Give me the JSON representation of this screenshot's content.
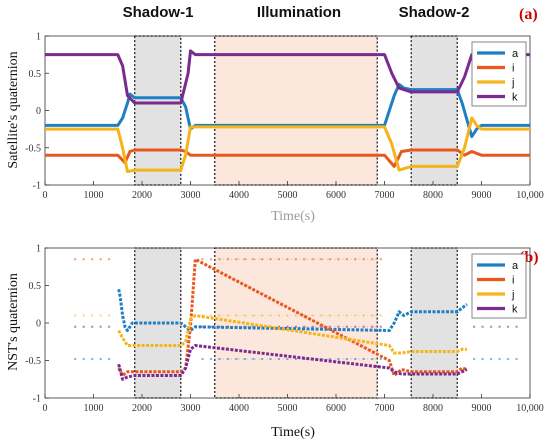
{
  "phases": {
    "shadow1": "Shadow-1",
    "illumination": "Illumination",
    "shadow2": "Shadow-2"
  },
  "colors": {
    "a": "#1f7fc4",
    "i": "#e8581c",
    "j": "#f4b41a",
    "k": "#7b2a8e",
    "shadow_fill": "#e2e2e2",
    "illum_fill": "#fbe7dc",
    "panel_tag": "#d40000"
  },
  "chart_data": [
    {
      "type": "line",
      "panel_label": "(a)",
      "xlabel": "Time(s)",
      "ylabel": "Satellite's quaternion",
      "xlim": [
        0,
        10000
      ],
      "ylim": [
        -1,
        1
      ],
      "xticks": [
        "0",
        "1000",
        "2000",
        "3000",
        "4000",
        "5000",
        "6000",
        "7000",
        "8000",
        "9000",
        "10,000"
      ],
      "yticks": [
        "-1",
        "-0.5",
        "0",
        "0.5",
        "1"
      ],
      "regions": [
        {
          "name": "Shadow-1",
          "x0": 1850,
          "x1": 2800
        },
        {
          "name": "Illumination",
          "x0": 3500,
          "x1": 6850
        },
        {
          "name": "Shadow-2",
          "x0": 7550,
          "x1": 8500
        }
      ],
      "legend": "top-right",
      "series": [
        {
          "name": "a",
          "points": [
            [
              0,
              -0.2
            ],
            [
              1500,
              -0.2
            ],
            [
              1600,
              -0.1
            ],
            [
              1700,
              0.1
            ],
            [
              1750,
              0.22
            ],
            [
              1850,
              0.17
            ],
            [
              2800,
              0.17
            ],
            [
              2900,
              0.05
            ],
            [
              3000,
              -0.25
            ],
            [
              3100,
              -0.2
            ],
            [
              7000,
              -0.2
            ],
            [
              7200,
              0.2
            ],
            [
              7300,
              0.35
            ],
            [
              7400,
              0.3
            ],
            [
              7550,
              0.28
            ],
            [
              8500,
              0.28
            ],
            [
              8600,
              0.1
            ],
            [
              8800,
              -0.35
            ],
            [
              8900,
              -0.25
            ],
            [
              9000,
              -0.2
            ],
            [
              10000,
              -0.2
            ]
          ]
        },
        {
          "name": "i",
          "points": [
            [
              0,
              -0.6
            ],
            [
              1500,
              -0.6
            ],
            [
              1650,
              -0.7
            ],
            [
              1750,
              -0.55
            ],
            [
              1850,
              -0.53
            ],
            [
              2800,
              -0.53
            ],
            [
              2900,
              -0.55
            ],
            [
              3000,
              -0.6
            ],
            [
              7000,
              -0.6
            ],
            [
              7200,
              -0.75
            ],
            [
              7350,
              -0.55
            ],
            [
              7550,
              -0.53
            ],
            [
              8500,
              -0.53
            ],
            [
              8650,
              -0.6
            ],
            [
              8800,
              -0.55
            ],
            [
              9000,
              -0.6
            ],
            [
              10000,
              -0.6
            ]
          ]
        },
        {
          "name": "j",
          "points": [
            [
              0,
              -0.25
            ],
            [
              1500,
              -0.25
            ],
            [
              1600,
              -0.5
            ],
            [
              1700,
              -0.82
            ],
            [
              1850,
              -0.8
            ],
            [
              2800,
              -0.8
            ],
            [
              2900,
              -0.6
            ],
            [
              3000,
              -0.22
            ],
            [
              7000,
              -0.22
            ],
            [
              7150,
              -0.45
            ],
            [
              7300,
              -0.8
            ],
            [
              7550,
              -0.75
            ],
            [
              8500,
              -0.75
            ],
            [
              8650,
              -0.5
            ],
            [
              8800,
              -0.1
            ],
            [
              8900,
              -0.2
            ],
            [
              9000,
              -0.25
            ],
            [
              10000,
              -0.25
            ]
          ]
        },
        {
          "name": "k",
          "points": [
            [
              0,
              0.75
            ],
            [
              1500,
              0.75
            ],
            [
              1600,
              0.6
            ],
            [
              1700,
              0.2
            ],
            [
              1850,
              0.1
            ],
            [
              2800,
              0.1
            ],
            [
              2950,
              0.5
            ],
            [
              3000,
              0.8
            ],
            [
              3100,
              0.75
            ],
            [
              7000,
              0.75
            ],
            [
              7150,
              0.5
            ],
            [
              7300,
              0.3
            ],
            [
              7550,
              0.25
            ],
            [
              8500,
              0.25
            ],
            [
              8650,
              0.45
            ],
            [
              8800,
              0.75
            ],
            [
              8900,
              0.75
            ],
            [
              10000,
              0.75
            ]
          ]
        }
      ]
    },
    {
      "type": "scatter",
      "panel_label": "(b)",
      "xlabel": "Time(s)",
      "ylabel": "NST's quaternion",
      "xlim": [
        0,
        10000
      ],
      "ylim": [
        -1,
        1
      ],
      "xticks": [
        "0",
        "1000",
        "2000",
        "3000",
        "4000",
        "5000",
        "6000",
        "7000",
        "8000",
        "9000",
        "10,000"
      ],
      "yticks": [
        "-1",
        "-0.5",
        "0",
        "0.5",
        "1"
      ],
      "regions": [
        {
          "name": "Shadow-1",
          "x0": 1850,
          "x1": 2800
        },
        {
          "name": "Illumination",
          "x0": 3500,
          "x1": 6850
        },
        {
          "name": "Shadow-2",
          "x0": 7550,
          "x1": 8500
        }
      ],
      "legend": "top-right",
      "faint_levels": {
        "a": -0.48,
        "i": 0.85,
        "j": 0.1,
        "k": -0.05
      },
      "series": [
        {
          "name": "a",
          "points": [
            [
              1520,
              0.45
            ],
            [
              1550,
              0.35
            ],
            [
              1600,
              0.1
            ],
            [
              1650,
              -0.05
            ],
            [
              1700,
              -0.1
            ],
            [
              1800,
              0.0
            ],
            [
              1850,
              0.0
            ],
            [
              2800,
              0.0
            ],
            [
              2900,
              -0.05
            ],
            [
              3000,
              -0.1
            ],
            [
              3100,
              -0.05
            ],
            [
              7100,
              -0.1
            ],
            [
              7200,
              0.0
            ],
            [
              7300,
              0.15
            ],
            [
              7400,
              0.1
            ],
            [
              7550,
              0.15
            ],
            [
              8500,
              0.15
            ],
            [
              8600,
              0.2
            ],
            [
              8700,
              0.25
            ]
          ]
        },
        {
          "name": "i",
          "points": [
            [
              1520,
              -0.6
            ],
            [
              1600,
              -0.7
            ],
            [
              1700,
              -0.65
            ],
            [
              1850,
              -0.65
            ],
            [
              2800,
              -0.65
            ],
            [
              2900,
              -0.6
            ],
            [
              3000,
              -0.05
            ],
            [
              3100,
              0.85
            ],
            [
              7100,
              -0.5
            ],
            [
              7200,
              -0.7
            ],
            [
              7350,
              -0.62
            ],
            [
              7550,
              -0.65
            ],
            [
              8500,
              -0.65
            ],
            [
              8600,
              -0.6
            ],
            [
              8700,
              -0.62
            ]
          ]
        },
        {
          "name": "j",
          "points": [
            [
              1520,
              -0.1
            ],
            [
              1600,
              -0.2
            ],
            [
              1700,
              -0.3
            ],
            [
              1850,
              -0.3
            ],
            [
              2800,
              -0.3
            ],
            [
              2900,
              -0.25
            ],
            [
              3000,
              0.05
            ],
            [
              3100,
              0.1
            ],
            [
              7100,
              -0.3
            ],
            [
              7200,
              -0.4
            ],
            [
              7350,
              -0.4
            ],
            [
              7550,
              -0.38
            ],
            [
              8500,
              -0.38
            ],
            [
              8600,
              -0.35
            ],
            [
              8700,
              -0.35
            ]
          ]
        },
        {
          "name": "k",
          "points": [
            [
              1520,
              -0.55
            ],
            [
              1600,
              -0.75
            ],
            [
              1700,
              -0.72
            ],
            [
              1850,
              -0.7
            ],
            [
              2800,
              -0.7
            ],
            [
              2900,
              -0.6
            ],
            [
              3000,
              -0.35
            ],
            [
              3100,
              -0.3
            ],
            [
              7100,
              -0.6
            ],
            [
              7200,
              -0.65
            ],
            [
              7350,
              -0.68
            ],
            [
              7550,
              -0.68
            ],
            [
              8500,
              -0.68
            ],
            [
              8600,
              -0.65
            ],
            [
              8700,
              -0.62
            ]
          ]
        }
      ]
    }
  ]
}
